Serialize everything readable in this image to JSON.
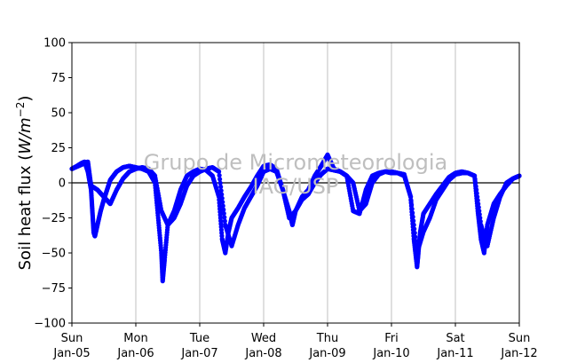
{
  "chart_data": {
    "type": "scatter",
    "title": "",
    "ylabel_text": "Soil heat flux (",
    "ylabel_unit": "W/m",
    "ylabel_exp": "−2",
    "ylabel_close": ")",
    "watermark": [
      "Grupo de Micrometeorologia",
      "IAG/USP"
    ],
    "ylim": [
      -100,
      100
    ],
    "yticks": [
      100,
      75,
      50,
      25,
      0,
      -25,
      -50,
      -75,
      -100
    ],
    "ytick_labels": [
      "100",
      "75",
      "50",
      "25",
      "0",
      "−25",
      "−50",
      "−75",
      "−100"
    ],
    "xlim_days": [
      0,
      7
    ],
    "xtick_labels": [
      {
        "day": "Sun",
        "date": "Jan-05"
      },
      {
        "day": "Mon",
        "date": "Jan-06"
      },
      {
        "day": "Tue",
        "date": "Jan-07"
      },
      {
        "day": "Wed",
        "date": "Jan-08"
      },
      {
        "day": "Thu",
        "date": "Jan-09"
      },
      {
        "day": "Fri",
        "date": "Jan-10"
      },
      {
        "day": "Sat",
        "date": "Jan-11"
      },
      {
        "day": "Sun",
        "date": "Jan-12"
      }
    ],
    "grid": "vertical",
    "zero_line": true,
    "marker_color": "#0000ff",
    "series": [
      {
        "x": [
          0.0,
          0.08,
          0.15,
          0.2,
          0.25,
          0.3,
          0.32,
          0.34,
          0.36,
          0.4,
          0.45,
          0.5,
          0.55,
          0.6,
          0.65,
          0.7,
          0.8,
          0.9,
          1.0,
          1.1,
          1.2,
          1.3,
          1.35,
          1.4,
          1.42,
          1.45,
          1.5,
          1.6,
          1.7,
          1.8,
          1.9,
          2.0,
          2.1,
          2.2,
          2.3,
          2.35,
          2.4,
          2.45,
          2.5,
          2.6,
          2.7,
          2.8,
          2.9,
          3.0,
          3.1,
          3.2,
          3.3,
          3.4,
          3.45,
          3.5,
          3.6,
          3.7,
          3.8,
          3.9,
          4.0,
          4.1,
          4.2,
          4.3,
          4.4,
          4.5,
          4.6,
          4.7,
          4.8,
          4.9,
          5.0,
          5.1,
          5.2,
          5.3,
          5.35,
          5.4,
          5.42,
          5.45,
          5.5,
          5.6,
          5.7,
          5.8,
          5.9,
          6.0,
          6.1,
          6.2,
          6.3,
          6.35,
          6.4,
          6.45,
          6.5,
          6.6,
          6.7,
          6.8,
          6.9,
          7.0
        ],
        "y": [
          10,
          12,
          14,
          15,
          8,
          -5,
          -20,
          -35,
          -38,
          -30,
          -20,
          -12,
          -5,
          2,
          5,
          8,
          11,
          12,
          11,
          10,
          8,
          0,
          -25,
          -50,
          -70,
          -55,
          -30,
          -20,
          -5,
          5,
          8,
          10,
          9,
          5,
          -10,
          -40,
          -50,
          -35,
          -25,
          -18,
          -10,
          -3,
          5,
          12,
          13,
          10,
          -5,
          -20,
          -30,
          -20,
          -10,
          -5,
          5,
          12,
          20,
          10,
          8,
          5,
          0,
          -20,
          -15,
          0,
          6,
          8,
          7,
          7,
          6,
          -10,
          -40,
          -60,
          -50,
          -35,
          -22,
          -15,
          -8,
          -2,
          4,
          7,
          8,
          7,
          5,
          -20,
          -40,
          -50,
          -30,
          -15,
          -8,
          -2,
          3,
          5
        ]
      },
      {
        "x": [
          0.0,
          0.1,
          0.2,
          0.25,
          0.3,
          0.4,
          0.5,
          0.6,
          0.7,
          0.8,
          0.9,
          1.0,
          1.1,
          1.2,
          1.3,
          1.4,
          1.5,
          1.6,
          1.7,
          1.8,
          1.9,
          2.0,
          2.1,
          2.2,
          2.3,
          2.4,
          2.5,
          2.6,
          2.7,
          2.8,
          2.9,
          3.0,
          3.1,
          3.2,
          3.3,
          3.4,
          3.5,
          3.6,
          3.7,
          3.8,
          3.9,
          4.0,
          4.1,
          4.2,
          4.3,
          4.4,
          4.5,
          4.6,
          4.7,
          4.8,
          4.9,
          5.0,
          5.1,
          5.2,
          5.3,
          5.4,
          5.5,
          5.6,
          5.7,
          5.8,
          5.9,
          6.0,
          6.1,
          6.2,
          6.3,
          6.4,
          6.5,
          6.6,
          6.7,
          6.8,
          6.9,
          7.0
        ],
        "y": [
          10,
          12,
          14,
          15,
          -2,
          -5,
          -10,
          -15,
          -5,
          3,
          8,
          10,
          11,
          10,
          5,
          -20,
          -30,
          -25,
          -15,
          -2,
          5,
          8,
          10,
          11,
          8,
          -30,
          -45,
          -30,
          -18,
          -10,
          -2,
          8,
          10,
          8,
          -5,
          -25,
          -20,
          -12,
          -8,
          0,
          6,
          10,
          9,
          8,
          5,
          -20,
          -22,
          -5,
          5,
          7,
          8,
          8,
          7,
          5,
          -10,
          -50,
          -35,
          -25,
          -12,
          -5,
          2,
          6,
          7,
          7,
          5,
          -30,
          -45,
          -25,
          -10,
          0,
          3,
          5
        ]
      }
    ]
  }
}
